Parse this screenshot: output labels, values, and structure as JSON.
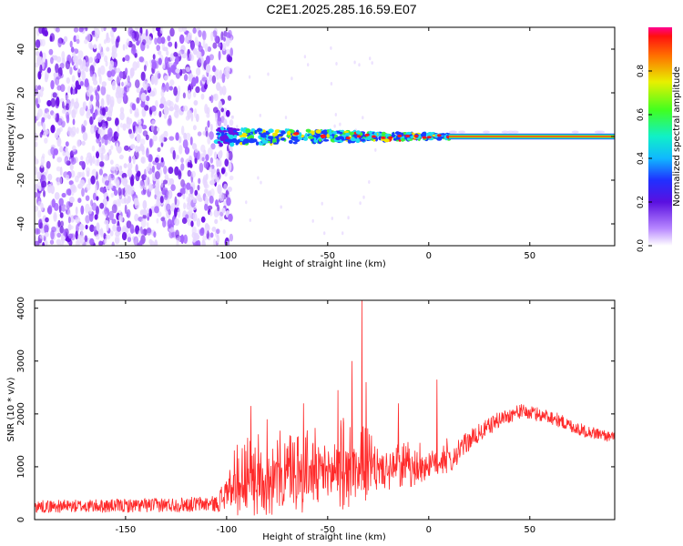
{
  "title": "C2E1.2025.285.16.59.E07",
  "colors": {
    "snr_line": "#ff2a2a",
    "spectrogram_faint": "#e6d6ff",
    "spectrogram_mid": "#a565ff",
    "spectrogram_strong": "#6b12e6",
    "ridge_blue": "#1a3cff",
    "ridge_cyan": "#1edcf0",
    "ridge_green": "#3cf03c",
    "ridge_yellow": "#f0e600",
    "ridge_red": "#ff1a1a"
  },
  "chart_data": [
    {
      "type": "heatmap",
      "name": "spectrogram",
      "xlabel": "Height of straight line (km)",
      "ylabel": "Frequency (Hz)",
      "xlim": [
        -195,
        92
      ],
      "ylim": [
        -50,
        50
      ],
      "xticks": [
        -150,
        -100,
        -50,
        0,
        50
      ],
      "xtick_labels": [
        "-150",
        "-100",
        "-50",
        "0",
        "50"
      ],
      "yticks": [
        -40,
        -20,
        0,
        20,
        40
      ],
      "ytick_labels": [
        "-40",
        "-20",
        "0",
        "20",
        "40"
      ],
      "noise_region_x": [
        -195,
        -100
      ],
      "signal": {
        "ridge_frequency_hz": 0,
        "scatter_band_x": [
          -105,
          10
        ],
        "scatter_halfwidth_hz": [
          4,
          1
        ],
        "steady_line_x": [
          10,
          92
        ]
      },
      "colorbar": {
        "label": "Normalized spectral amplitude",
        "range": [
          0,
          1
        ],
        "ticks": [
          0.0,
          0.2,
          0.4,
          0.6,
          0.8
        ],
        "tick_labels": [
          "0.0",
          "0.2",
          "0.4",
          "0.6",
          "0.8"
        ]
      }
    },
    {
      "type": "line",
      "name": "snr",
      "xlabel": "Height of straight line (km)",
      "ylabel": "SNR (10 * v/v)",
      "xlim": [
        -195,
        92
      ],
      "ylim": [
        0,
        4150
      ],
      "xticks": [
        -150,
        -100,
        -50,
        0,
        50
      ],
      "xtick_labels": [
        "-150",
        "-100",
        "-50",
        "0",
        "50"
      ],
      "yticks": [
        0,
        1000,
        2000,
        3000,
        4000
      ],
      "ytick_labels": [
        "0",
        "1000",
        "2000",
        "3000",
        "4000"
      ],
      "profile_x": [
        -195,
        -150,
        -105,
        -100,
        -85,
        -60,
        -40,
        -20,
        0,
        10,
        20,
        35,
        45,
        60,
        75,
        92
      ],
      "profile_base": [
        250,
        260,
        300,
        500,
        600,
        700,
        800,
        850,
        950,
        1100,
        1500,
        1900,
        2050,
        1950,
        1700,
        1550
      ],
      "profile_spread": [
        200,
        220,
        250,
        650,
        800,
        800,
        900,
        500,
        400,
        350,
        280,
        220,
        200,
        200,
        180,
        150
      ],
      "spikes": [
        {
          "x": -88,
          "value": 2150
        },
        {
          "x": -80,
          "value": 1900
        },
        {
          "x": -62,
          "value": 2200
        },
        {
          "x": -45,
          "value": 2450
        },
        {
          "x": -38,
          "value": 3000
        },
        {
          "x": -33,
          "value": 4150
        },
        {
          "x": -31,
          "value": 2600
        },
        {
          "x": -15,
          "value": 2200
        },
        {
          "x": 4,
          "value": 2650
        }
      ]
    }
  ]
}
